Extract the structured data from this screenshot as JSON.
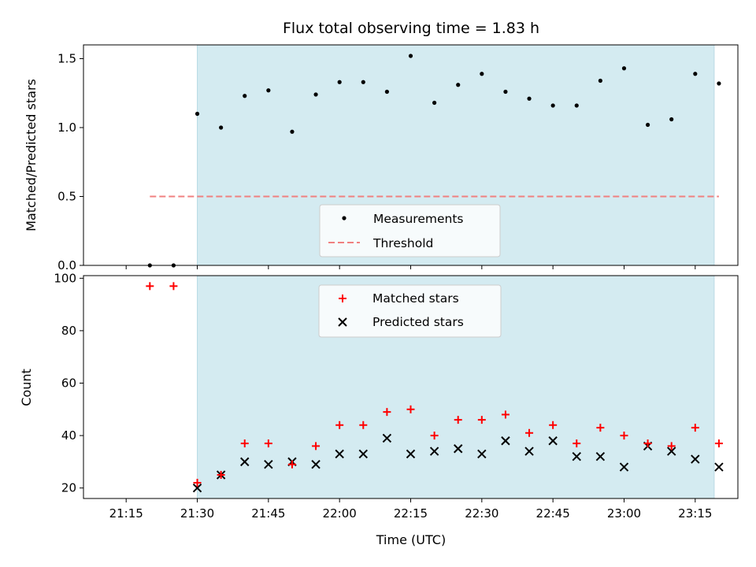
{
  "chart_data": [
    {
      "type": "scatter",
      "title": "Flux total observing time = 1.83 h",
      "ylabel": "Matched/Predicted stars",
      "xlabel": "",
      "ylim": [
        0,
        1.6
      ],
      "yticks": [
        0.0,
        0.5,
        1.0,
        1.5
      ],
      "ytick_labels": [
        "0.0",
        "0.5",
        "1.0",
        "1.5"
      ],
      "x_range": [
        "21:06",
        "23:24"
      ],
      "shaded_span": [
        "21:30",
        "23:19"
      ],
      "series": [
        {
          "name": "Measurements",
          "marker": "dot",
          "color": "#000000",
          "x": [
            "21:20",
            "21:25",
            "21:30",
            "21:35",
            "21:40",
            "21:45",
            "21:50",
            "21:55",
            "22:00",
            "22:05",
            "22:10",
            "22:15",
            "22:20",
            "22:25",
            "22:30",
            "22:35",
            "22:40",
            "22:45",
            "22:50",
            "22:55",
            "23:00",
            "23:05",
            "23:10",
            "23:15",
            "23:20"
          ],
          "y": [
            0.0,
            0.0,
            1.1,
            1.0,
            1.23,
            1.27,
            0.97,
            1.24,
            1.33,
            1.33,
            1.26,
            1.52,
            1.18,
            1.31,
            1.39,
            1.26,
            1.21,
            1.16,
            1.16,
            1.34,
            1.43,
            1.02,
            1.06,
            1.39,
            1.32
          ]
        },
        {
          "name": "Threshold",
          "marker": "dashed-line",
          "color": "#f08080",
          "x": [
            "21:20",
            "23:20"
          ],
          "y": [
            0.5,
            0.5
          ]
        }
      ],
      "legend": "lower-center"
    },
    {
      "type": "scatter",
      "title": "",
      "ylabel": "Count",
      "xlabel": "Time (UTC)",
      "ylim": [
        16,
        101
      ],
      "yticks": [
        20,
        40,
        60,
        80,
        100
      ],
      "ytick_labels": [
        "20",
        "40",
        "60",
        "80",
        "100"
      ],
      "x_range": [
        "21:06",
        "23:24"
      ],
      "xticks": [
        "21:15",
        "21:30",
        "21:45",
        "22:00",
        "22:15",
        "22:30",
        "22:45",
        "23:00",
        "23:15"
      ],
      "shaded_span": [
        "21:30",
        "23:19"
      ],
      "series": [
        {
          "name": "Matched stars",
          "marker": "plus",
          "color": "#ff0000",
          "x": [
            "21:20",
            "21:25",
            "21:30",
            "21:35",
            "21:40",
            "21:45",
            "21:50",
            "21:55",
            "22:00",
            "22:05",
            "22:10",
            "22:15",
            "22:20",
            "22:25",
            "22:30",
            "22:35",
            "22:40",
            "22:45",
            "22:50",
            "22:55",
            "23:00",
            "23:05",
            "23:10",
            "23:15",
            "23:20"
          ],
          "y": [
            97,
            97,
            22,
            25,
            37,
            37,
            29,
            36,
            44,
            44,
            49,
            50,
            40,
            46,
            46,
            48,
            41,
            44,
            37,
            43,
            40,
            37,
            36,
            43,
            37
          ]
        },
        {
          "name": "Predicted stars",
          "marker": "x",
          "color": "#000000",
          "x": [
            "21:30",
            "21:35",
            "21:40",
            "21:45",
            "21:50",
            "21:55",
            "22:00",
            "22:05",
            "22:10",
            "22:15",
            "22:20",
            "22:25",
            "22:30",
            "22:35",
            "22:40",
            "22:45",
            "22:50",
            "22:55",
            "23:00",
            "23:05",
            "23:10",
            "23:15",
            "23:20"
          ],
          "y": [
            20,
            25,
            30,
            29,
            30,
            29,
            33,
            33,
            39,
            33,
            34,
            35,
            33,
            38,
            34,
            38,
            32,
            32,
            28,
            36,
            34,
            31,
            28
          ]
        }
      ],
      "legend": "upper-center"
    }
  ],
  "colors": {
    "shade": "#d4ebf1",
    "shade_edge": "#b9dbe5"
  }
}
